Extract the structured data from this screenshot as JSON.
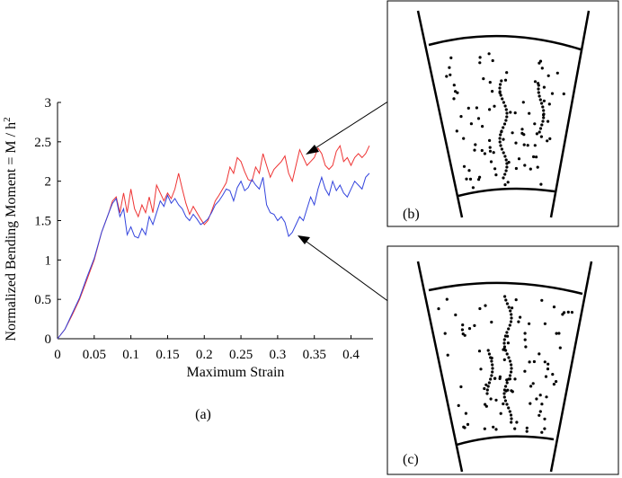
{
  "chart_data": {
    "type": "line",
    "title": "",
    "xlabel": "Maximum Strain",
    "ylabel": "Normalized Bending Moment = M / h",
    "ylabel_superscript": "2",
    "xlim": [
      0,
      0.43
    ],
    "ylim": [
      0,
      3
    ],
    "x_ticks": [
      0,
      0.05,
      0.1,
      0.15,
      0.2,
      0.25,
      0.3,
      0.35,
      0.4
    ],
    "x_tick_labels": [
      "0",
      "0.05",
      "0.1",
      "0.15",
      "0.2",
      "0.25",
      "0.3",
      "0.35",
      "0.4"
    ],
    "y_ticks": [
      0,
      0.5,
      1,
      1.5,
      2,
      2.5,
      3
    ],
    "y_tick_labels": [
      "0",
      "0.5",
      "1",
      "1.5",
      "2",
      "2.5",
      "3"
    ],
    "grid": false,
    "series": [
      {
        "color": "#ee3333",
        "x": [
          0,
          0.01,
          0.02,
          0.03,
          0.04,
          0.05,
          0.06,
          0.07,
          0.075,
          0.08,
          0.085,
          0.09,
          0.095,
          0.1,
          0.105,
          0.11,
          0.115,
          0.12,
          0.125,
          0.13,
          0.135,
          0.14,
          0.145,
          0.15,
          0.155,
          0.16,
          0.165,
          0.17,
          0.175,
          0.18,
          0.185,
          0.19,
          0.195,
          0.2,
          0.205,
          0.21,
          0.215,
          0.22,
          0.225,
          0.23,
          0.235,
          0.24,
          0.245,
          0.25,
          0.255,
          0.26,
          0.265,
          0.27,
          0.275,
          0.28,
          0.285,
          0.29,
          0.295,
          0.3,
          0.305,
          0.31,
          0.315,
          0.32,
          0.325,
          0.33,
          0.335,
          0.34,
          0.345,
          0.35,
          0.355,
          0.36,
          0.365,
          0.37,
          0.375,
          0.38,
          0.385,
          0.39,
          0.395,
          0.4,
          0.405,
          0.41,
          0.415,
          0.42,
          0.425
        ],
        "y": [
          0,
          0.12,
          0.3,
          0.5,
          0.75,
          1.0,
          1.35,
          1.6,
          1.75,
          1.8,
          1.6,
          1.85,
          1.6,
          1.9,
          1.65,
          1.55,
          1.7,
          1.6,
          1.8,
          1.6,
          1.95,
          1.85,
          1.75,
          1.85,
          1.78,
          1.9,
          2.1,
          1.9,
          1.72,
          1.58,
          1.68,
          1.6,
          1.52,
          1.45,
          1.5,
          1.62,
          1.75,
          1.82,
          1.9,
          1.98,
          2.18,
          2.1,
          2.3,
          2.25,
          2.12,
          2.02,
          2.0,
          2.18,
          2.1,
          2.35,
          2.2,
          2.05,
          2.15,
          2.2,
          2.25,
          2.32,
          2.1,
          2.0,
          2.2,
          2.4,
          2.3,
          2.2,
          2.25,
          2.3,
          2.42,
          2.35,
          2.2,
          2.15,
          2.2,
          2.38,
          2.45,
          2.25,
          2.3,
          2.2,
          2.3,
          2.35,
          2.3,
          2.35,
          2.45
        ]
      },
      {
        "color": "#3344dd",
        "x": [
          0,
          0.01,
          0.02,
          0.03,
          0.04,
          0.05,
          0.06,
          0.07,
          0.075,
          0.08,
          0.085,
          0.09,
          0.095,
          0.1,
          0.105,
          0.11,
          0.115,
          0.12,
          0.125,
          0.13,
          0.135,
          0.14,
          0.145,
          0.15,
          0.155,
          0.16,
          0.165,
          0.17,
          0.175,
          0.18,
          0.185,
          0.19,
          0.195,
          0.2,
          0.205,
          0.21,
          0.215,
          0.22,
          0.225,
          0.23,
          0.235,
          0.24,
          0.245,
          0.25,
          0.255,
          0.26,
          0.265,
          0.27,
          0.275,
          0.28,
          0.285,
          0.29,
          0.295,
          0.3,
          0.305,
          0.31,
          0.315,
          0.32,
          0.325,
          0.33,
          0.335,
          0.34,
          0.345,
          0.35,
          0.355,
          0.36,
          0.365,
          0.37,
          0.375,
          0.38,
          0.385,
          0.39,
          0.395,
          0.4,
          0.405,
          0.41,
          0.415,
          0.42,
          0.425
        ],
        "y": [
          0,
          0.12,
          0.32,
          0.52,
          0.78,
          1.02,
          1.35,
          1.6,
          1.72,
          1.78,
          1.55,
          1.65,
          1.32,
          1.42,
          1.3,
          1.28,
          1.4,
          1.32,
          1.55,
          1.45,
          1.6,
          1.75,
          1.68,
          1.82,
          1.72,
          1.78,
          1.7,
          1.65,
          1.55,
          1.5,
          1.58,
          1.52,
          1.45,
          1.48,
          1.52,
          1.6,
          1.7,
          1.75,
          1.82,
          1.9,
          1.88,
          1.75,
          1.92,
          2.0,
          1.88,
          1.92,
          2.02,
          1.95,
          1.9,
          2.05,
          1.7,
          1.6,
          1.58,
          1.5,
          1.55,
          1.48,
          1.3,
          1.35,
          1.45,
          1.55,
          1.5,
          1.65,
          1.8,
          1.7,
          1.9,
          2.05,
          1.9,
          1.82,
          2.0,
          1.88,
          1.95,
          1.85,
          1.8,
          1.9,
          2.0,
          1.95,
          1.9,
          2.05,
          2.1
        ]
      }
    ]
  },
  "panel_labels": {
    "a": "(a)",
    "b": "(b)",
    "c": "(c)"
  },
  "colors": {
    "red_series": "#ee3333",
    "blue_series": "#3344dd",
    "annotation": "#000000"
  }
}
